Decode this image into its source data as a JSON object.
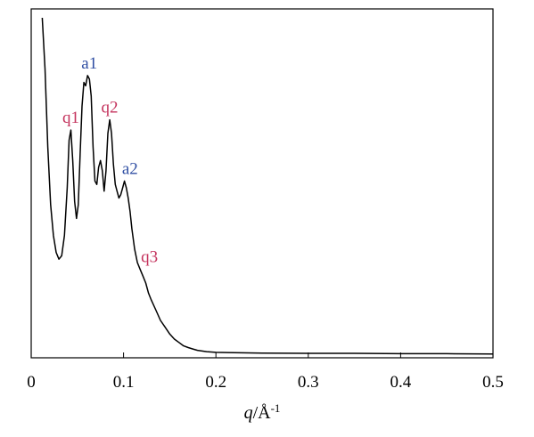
{
  "chart_data": {
    "type": "line",
    "title": "",
    "xlabel": "q/Å-1",
    "xlabel_parts": {
      "var": "q",
      "unit": "/Å",
      "exp": "-1"
    },
    "ylabel": "",
    "xlim": [
      0,
      0.5
    ],
    "ylim": [
      0,
      100
    ],
    "x_ticks": [
      0,
      0.1,
      0.2,
      0.3,
      0.4,
      0.5
    ],
    "x_tick_labels": [
      "0",
      "0.1",
      "0.2",
      "0.3",
      "0.4",
      "0.5"
    ],
    "y_ticks_shown": false,
    "grid": false,
    "legend": "none",
    "series": [
      {
        "color": "#000000",
        "x": [
          0.012,
          0.015,
          0.018,
          0.021,
          0.024,
          0.027,
          0.03,
          0.033,
          0.036,
          0.039,
          0.041,
          0.043,
          0.045,
          0.047,
          0.049,
          0.051,
          0.053,
          0.055,
          0.057,
          0.059,
          0.061,
          0.063,
          0.065,
          0.067,
          0.069,
          0.071,
          0.073,
          0.075,
          0.077,
          0.079,
          0.081,
          0.083,
          0.085,
          0.087,
          0.089,
          0.091,
          0.093,
          0.095,
          0.097,
          0.099,
          0.101,
          0.103,
          0.105,
          0.107,
          0.109,
          0.112,
          0.115,
          0.118,
          0.121,
          0.124,
          0.127,
          0.13,
          0.135,
          0.14,
          0.145,
          0.15,
          0.155,
          0.16,
          0.165,
          0.17,
          0.175,
          0.18,
          0.185,
          0.19,
          0.2,
          0.22,
          0.25,
          0.3,
          0.35,
          0.4,
          0.45,
          0.5
        ],
        "y": [
          100,
          85,
          62,
          45,
          36,
          31,
          29,
          30,
          36,
          50,
          64,
          67,
          58,
          46,
          41,
          45,
          60,
          74,
          81,
          80,
          83,
          82,
          77,
          62,
          52,
          51,
          56,
          58,
          55,
          49,
          55,
          66,
          70,
          66,
          57,
          51,
          49,
          47,
          48,
          50,
          52,
          50,
          47,
          43,
          38,
          32,
          28,
          26,
          24,
          22,
          19,
          17,
          14,
          11,
          9,
          7,
          5.5,
          4.5,
          3.5,
          3.0,
          2.6,
          2.2,
          2.0,
          1.8,
          1.6,
          1.5,
          1.4,
          1.3,
          1.3,
          1.2,
          1.2,
          1.1
        ]
      }
    ],
    "annotations": [
      {
        "text": "q1",
        "x": 0.043,
        "y": 67,
        "color": "#c4335d"
      },
      {
        "text": "a1",
        "x": 0.063,
        "y": 83,
        "color": "#2f4ea3"
      },
      {
        "text": "q2",
        "x": 0.085,
        "y": 70,
        "color": "#c4335d"
      },
      {
        "text": "a2",
        "x": 0.107,
        "y": 52,
        "color": "#2f4ea3"
      },
      {
        "text": "q3",
        "x": 0.128,
        "y": 26,
        "color": "#c4335d"
      }
    ]
  }
}
